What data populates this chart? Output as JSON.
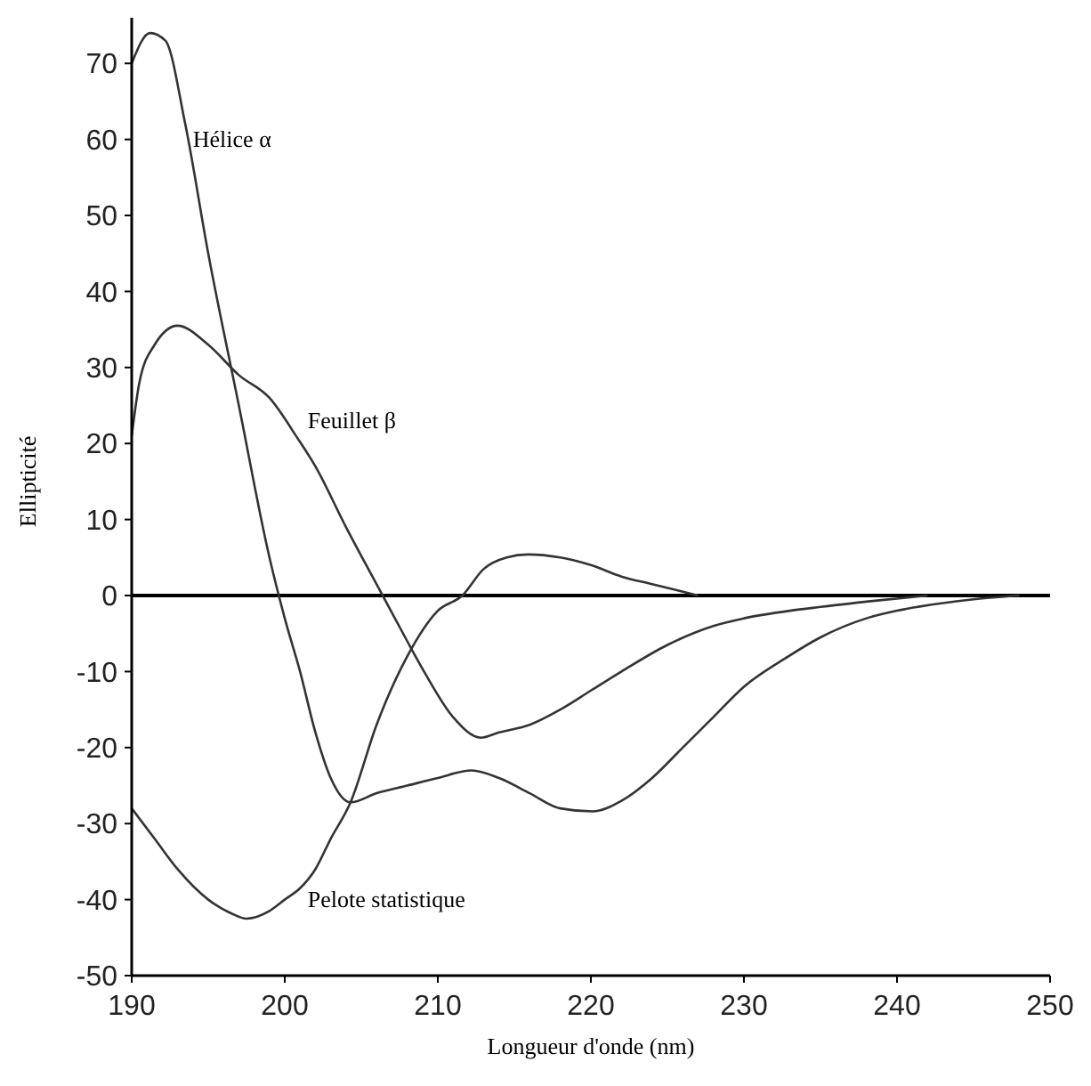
{
  "chart_data": {
    "type": "line",
    "xlabel": "Longueur d'onde (nm)",
    "ylabel": "Ellipticité",
    "xlim": [
      190,
      250
    ],
    "ylim": [
      -50,
      76
    ],
    "xticks": [
      190,
      200,
      210,
      220,
      230,
      240,
      250
    ],
    "yticks": [
      -50,
      -40,
      -30,
      -20,
      -10,
      0,
      10,
      20,
      30,
      40,
      50,
      60,
      70
    ],
    "grid": false,
    "marker": "none",
    "line_style": "solid",
    "ref_lines": [
      {
        "axis": "y",
        "value": 0,
        "color": "#000000"
      }
    ],
    "series": [
      {
        "name": "Hélice α",
        "color": "#333333",
        "x": [
          190,
          191.2,
          192.2,
          193.5,
          195,
          197,
          199,
          200,
          201,
          202,
          203,
          204.3,
          206,
          208,
          210,
          212.2,
          214,
          216,
          218,
          220.1,
          222,
          224,
          226,
          228,
          230,
          232.9,
          235,
          238,
          240,
          243,
          245,
          248
        ],
        "values": [
          70,
          74,
          73,
          62,
          45,
          25,
          5,
          -3,
          -10,
          -18,
          -24,
          -27.2,
          -26,
          -25,
          -24,
          -23,
          -24,
          -26,
          -28,
          -28.4,
          -27,
          -24,
          -20,
          -16,
          -12,
          -8,
          -5.5,
          -3,
          -2,
          -1,
          -0.5,
          0
        ]
      },
      {
        "name": "Feuillet β",
        "color": "#333333",
        "x": [
          190,
          190.5,
          191.5,
          193,
          195,
          197,
          199,
          200.8,
          202,
          204,
          206.4,
          208,
          209.1,
          211,
          212.8,
          214,
          216,
          218,
          220,
          222,
          225,
          228,
          230,
          233,
          235,
          238,
          240,
          242
        ],
        "values": [
          21,
          28,
          33,
          35.5,
          33,
          29,
          26,
          20.8,
          17,
          9,
          0,
          -6,
          -10,
          -16,
          -18.7,
          -18,
          -17,
          -15,
          -12.5,
          -10,
          -6.5,
          -4,
          -3,
          -2,
          -1.5,
          -0.8,
          -0.4,
          0
        ]
      },
      {
        "name": "Pelote statistique",
        "color": "#333333",
        "x": [
          190,
          191.5,
          193,
          195,
          196.5,
          197.5,
          199,
          200,
          201,
          202,
          203,
          204.3,
          206,
          208,
          210,
          211.6,
          213,
          214.5,
          215.9,
          218,
          220,
          222,
          224,
          227
        ],
        "values": [
          -28,
          -32,
          -36,
          -40,
          -41.8,
          -42.5,
          -41.5,
          -40,
          -38.5,
          -36,
          -32,
          -27.2,
          -17,
          -8,
          -2,
          0,
          3.5,
          5,
          5.4,
          5,
          4,
          2.5,
          1.5,
          0
        ]
      }
    ]
  }
}
